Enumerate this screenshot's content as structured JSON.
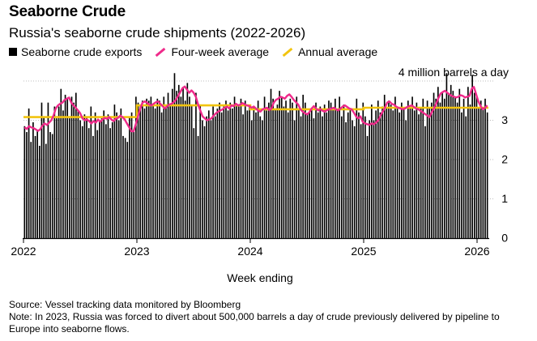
{
  "title": "Seaborne Crude",
  "subtitle": "Russia's seaborne crude shipments (2022-2026)",
  "legend": {
    "bars": "Seaborne crude exports",
    "avg4": "Four-week average",
    "annual": "Annual average"
  },
  "colors": {
    "bars": "#000000",
    "avg4": "#ef2a8a",
    "annual": "#f2c40f",
    "axis": "#000000"
  },
  "axis_unit_label": "4 million barrels a day",
  "xlabel": "Week ending",
  "source": "Source: Vessel tracking data monitored by Bloomberg",
  "note": "Note: In 2023, Russia was forced to divert about 500,000 barrels a day of crude previously delivered by pipeline to Europe into seaborne flows.",
  "chart_data": {
    "type": "bar",
    "title": "Seaborne Crude",
    "subtitle": "Russia's seaborne crude shipments (2022-2026)",
    "xlabel": "Week ending",
    "ylabel": "million barrels a day",
    "ylim": [
      0,
      4
    ],
    "yticks": [
      0,
      1,
      2,
      3,
      4
    ],
    "ytick_labels": [
      "0",
      "1",
      "2",
      "3",
      "4"
    ],
    "x_range": [
      2022.0,
      2026.1
    ],
    "xticks": [
      2022,
      2023,
      2024,
      2025,
      2026
    ],
    "xtick_labels": [
      "2022",
      "2023",
      "2024",
      "2025",
      "2026"
    ],
    "series": [
      {
        "name": "Seaborne crude exports",
        "type": "bar",
        "values": [
          2.85,
          2.7,
          3.3,
          2.45,
          2.95,
          2.6,
          2.75,
          2.35,
          3.45,
          3.1,
          2.4,
          3.45,
          2.7,
          2.65,
          3.35,
          3.05,
          3.35,
          3.8,
          3.25,
          3.65,
          3.55,
          3.05,
          3.6,
          3.45,
          3.7,
          3.25,
          3.0,
          2.85,
          3.15,
          3.1,
          2.8,
          3.35,
          2.6,
          3.2,
          2.75,
          3.0,
          3.05,
          3.25,
          2.9,
          3.15,
          2.8,
          2.95,
          3.4,
          3.2,
          3.0,
          3.3,
          2.6,
          2.55,
          2.45,
          3.1,
          3.2,
          2.7,
          3.6,
          3.45,
          3.35,
          3.5,
          3.3,
          3.55,
          3.5,
          3.6,
          3.4,
          3.3,
          3.55,
          3.5,
          3.2,
          3.6,
          3.35,
          3.7,
          3.4,
          3.8,
          4.2,
          3.75,
          3.9,
          3.6,
          3.85,
          3.5,
          3.95,
          3.6,
          3.4,
          2.8,
          3.7,
          2.6,
          3.4,
          3.0,
          2.85,
          3.1,
          3.25,
          3.0,
          3.35,
          3.1,
          3.3,
          3.45,
          3.2,
          3.35,
          3.5,
          3.25,
          3.45,
          3.3,
          3.6,
          3.4,
          3.35,
          3.55,
          3.15,
          3.5,
          3.25,
          3.4,
          3.0,
          3.35,
          3.2,
          3.5,
          3.1,
          3.0,
          3.6,
          3.25,
          3.45,
          3.8,
          3.55,
          3.3,
          3.4,
          3.75,
          3.6,
          3.35,
          3.5,
          3.2,
          3.55,
          3.45,
          3.0,
          3.6,
          3.3,
          3.1,
          3.65,
          3.45,
          3.15,
          3.2,
          3.3,
          3.05,
          3.45,
          3.2,
          3.35,
          3.1,
          3.4,
          3.2,
          3.5,
          3.45,
          3.3,
          3.55,
          3.25,
          3.6,
          3.1,
          3.4,
          2.95,
          3.2,
          3.3,
          3.0,
          2.85,
          3.55,
          3.2,
          2.9,
          3.45,
          3.1,
          2.6,
          3.0,
          3.4,
          3.0,
          3.25,
          3.5,
          3.2,
          3.35,
          3.65,
          3.3,
          3.5,
          3.4,
          3.25,
          3.6,
          3.35,
          3.2,
          3.45,
          3.3,
          3.0,
          3.5,
          3.35,
          3.6,
          3.25,
          3.45,
          3.15,
          3.3,
          3.55,
          2.85,
          3.5,
          3.3,
          3.45,
          3.7,
          3.55,
          3.85,
          3.45,
          3.7,
          3.55,
          4.2,
          3.65,
          3.9,
          3.75,
          3.6,
          3.45,
          3.8,
          3.2,
          3.55,
          3.1,
          3.85,
          3.4,
          4.15,
          3.7,
          3.6,
          3.3,
          3.5,
          3.3,
          3.55,
          3.2
        ]
      },
      {
        "name": "Four-week average",
        "type": "line",
        "values": [
          2.82,
          2.78,
          2.85,
          2.82,
          2.8,
          2.77,
          2.73,
          2.77,
          2.86,
          2.92,
          2.88,
          2.94,
          3.0,
          3.12,
          3.3,
          3.38,
          3.42,
          3.45,
          3.52,
          3.55,
          3.58,
          3.45,
          3.38,
          3.32,
          3.25,
          3.18,
          3.05,
          3.0,
          3.02,
          2.98,
          2.92,
          2.98,
          2.94,
          3.02,
          2.96,
          3.02,
          3.06,
          3.04,
          3.08,
          3.02,
          2.98,
          3.04,
          3.06,
          3.12,
          3.08,
          3.02,
          2.92,
          2.82,
          2.72,
          2.72,
          2.9,
          3.1,
          3.3,
          3.45,
          3.48,
          3.45,
          3.4,
          3.38,
          3.42,
          3.46,
          3.48,
          3.42,
          3.36,
          3.3,
          3.35,
          3.4,
          3.42,
          3.46,
          3.52,
          3.62,
          3.72,
          3.82,
          3.86,
          3.78,
          3.7,
          3.76,
          3.7,
          3.6,
          3.4,
          3.25,
          3.1,
          3.05,
          3.0,
          3.02,
          3.05,
          3.12,
          3.18,
          3.22,
          3.25,
          3.28,
          3.32,
          3.35,
          3.3,
          3.38,
          3.36,
          3.42,
          3.38,
          3.4,
          3.44,
          3.4,
          3.38,
          3.36,
          3.32,
          3.35,
          3.3,
          3.25,
          3.22,
          3.28,
          3.3,
          3.32,
          3.26,
          3.3,
          3.45,
          3.52,
          3.55,
          3.6,
          3.58,
          3.55,
          3.62,
          3.66,
          3.6,
          3.52,
          3.46,
          3.4,
          3.28,
          3.22,
          3.18,
          3.15,
          3.2,
          3.3,
          3.36,
          3.3,
          3.25,
          3.28,
          3.24,
          3.22,
          3.26,
          3.28,
          3.3,
          3.32,
          3.28,
          3.25,
          3.3,
          3.35,
          3.38,
          3.34,
          3.3,
          3.28,
          3.2,
          3.1,
          3.05,
          3.1,
          2.96,
          2.92,
          2.9,
          2.88,
          2.92,
          2.9,
          2.94,
          3.0,
          3.12,
          3.22,
          3.32,
          3.45,
          3.48,
          3.42,
          3.4,
          3.35,
          3.32,
          3.3,
          3.28,
          3.3,
          3.34,
          3.36,
          3.38,
          3.34,
          3.3,
          3.28,
          3.24,
          3.2,
          3.16,
          3.12,
          3.08,
          3.2,
          3.3,
          3.42,
          3.56,
          3.68,
          3.72,
          3.75,
          3.7,
          3.66,
          3.62,
          3.6,
          3.58,
          3.6,
          3.64,
          3.62,
          3.58,
          3.6,
          3.62,
          3.8,
          3.85,
          3.66,
          3.48,
          3.36,
          3.28,
          3.32,
          3.38
        ]
      },
      {
        "name": "Annual average",
        "type": "step",
        "segments": [
          {
            "year": 2022,
            "value": 3.08
          },
          {
            "year": 2023,
            "value": 3.38
          },
          {
            "year": 2024,
            "value": 3.28
          },
          {
            "year": 2025,
            "value": 3.32
          },
          {
            "year": 2026,
            "value": 3.32
          }
        ]
      }
    ]
  }
}
